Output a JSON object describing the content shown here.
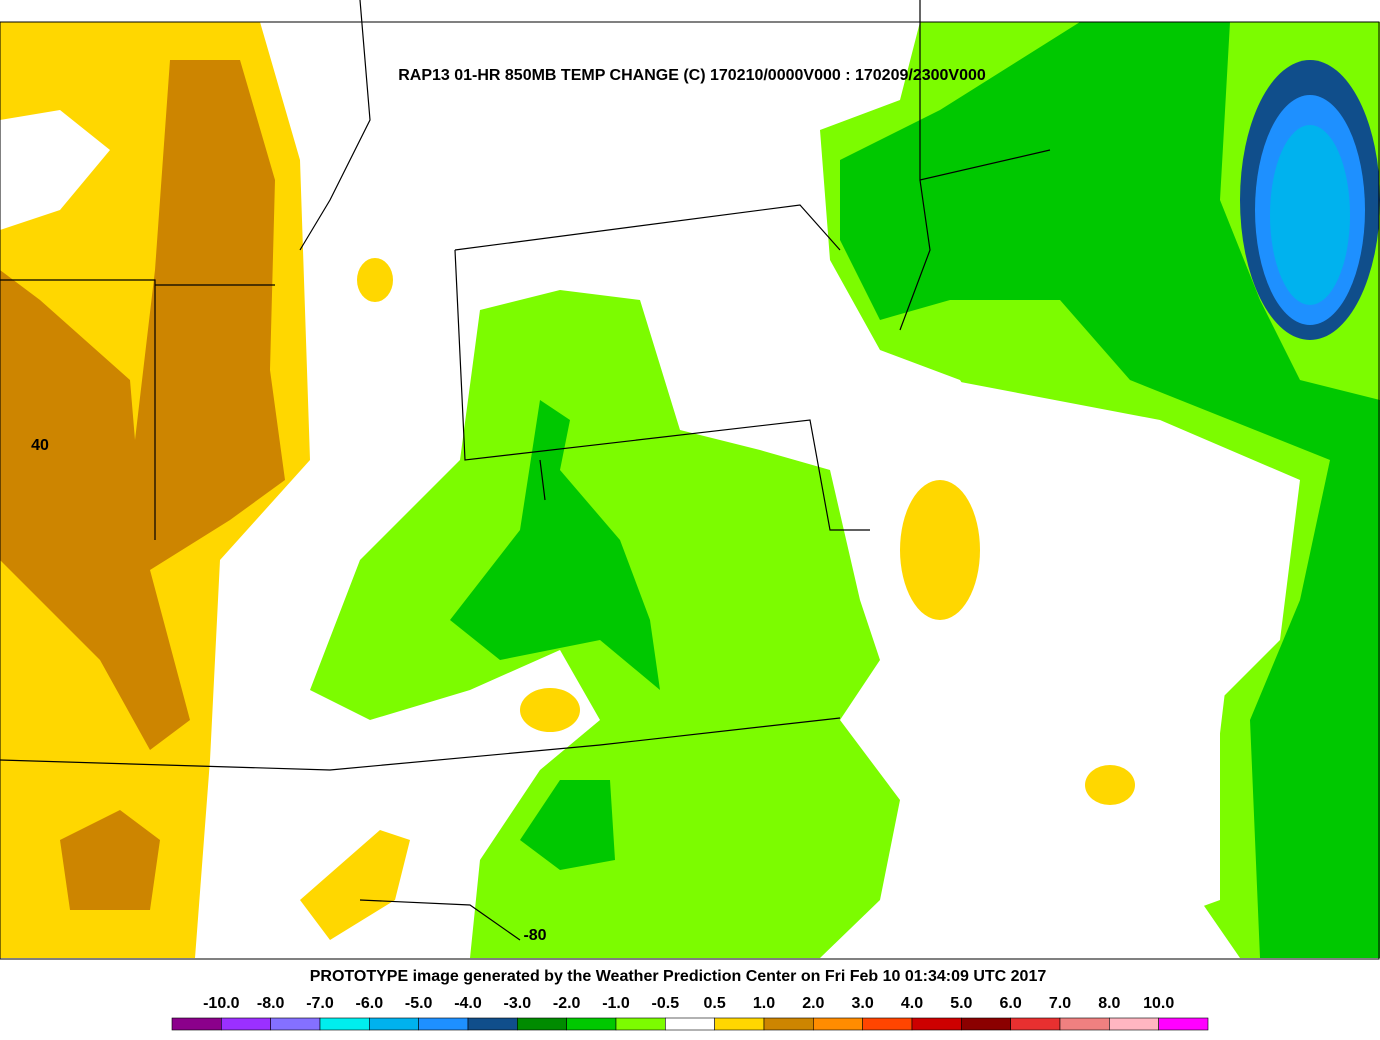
{
  "title": "RAP13 01-HR 850MB TEMP CHANGE (C) 170210/0000V000 : 170209/2300V000",
  "footer": "PROTOTYPE image generated by the Weather Prediction Center on Fri Feb 10 01:34:09 UTC 2017",
  "map_labels": {
    "latitude": "40",
    "longitude": "-80"
  },
  "legend": {
    "labels": [
      "-10.0",
      "-8.0",
      "-7.0",
      "-6.0",
      "-5.0",
      "-4.0",
      "-3.0",
      "-2.0",
      "-1.0",
      "-0.5",
      "0.5",
      "1.0",
      "2.0",
      "3.0",
      "4.0",
      "5.0",
      "6.0",
      "7.0",
      "8.0",
      "10.0"
    ],
    "colors": [
      "#8b008b",
      "#9b30ff",
      "#8470ff",
      "#00eeee",
      "#00b2ee",
      "#1e90ff",
      "#104e8b",
      "#008b00",
      "#00c800",
      "#7cfc00",
      "#ffffff",
      "#ffd700",
      "#cd8500",
      "#ff8c00",
      "#ff4500",
      "#cd0000",
      "#8b0000",
      "#e83030",
      "#f08080",
      "#ffb6c1",
      "#ff00ff"
    ]
  }
}
